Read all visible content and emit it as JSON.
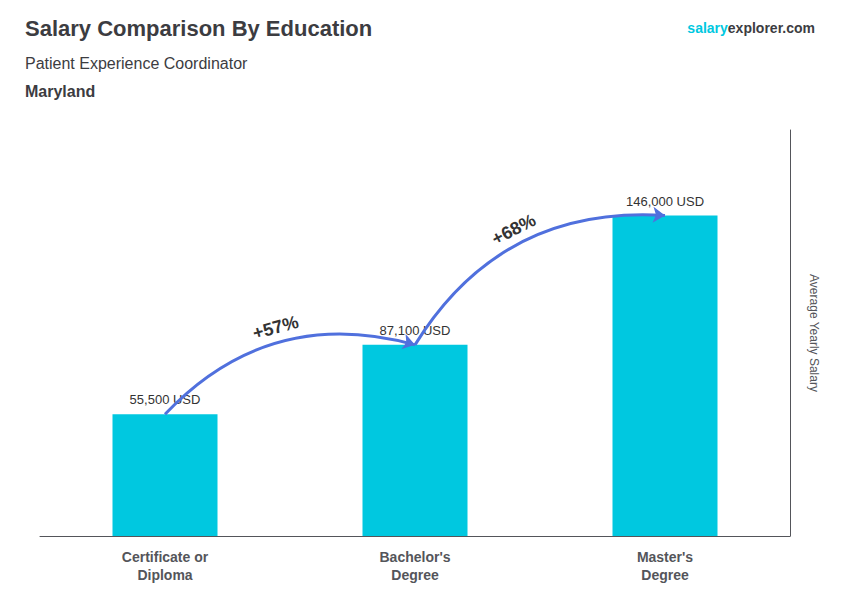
{
  "chart_data": {
    "type": "bar",
    "title": "Salary Comparison By Education",
    "subtitle": "Patient Experience Coordinator",
    "location": "Maryland",
    "brand": [
      "salary",
      "explorer.com"
    ],
    "categories": [
      "Certificate or\nDiploma",
      "Bachelor's\nDegree",
      "Master's\nDegree"
    ],
    "values": [
      55500,
      87100,
      146000
    ],
    "value_labels": [
      "55,500 USD",
      "87,100 USD",
      "146,000 USD"
    ],
    "data_labels": true,
    "annotations": [
      "+57%",
      "+68%"
    ],
    "color": "#00c8e0",
    "ylabel": "Average Yearly Salary",
    "ylim": [
      0,
      185000
    ],
    "tick_labels": "x",
    "grid": false
  }
}
